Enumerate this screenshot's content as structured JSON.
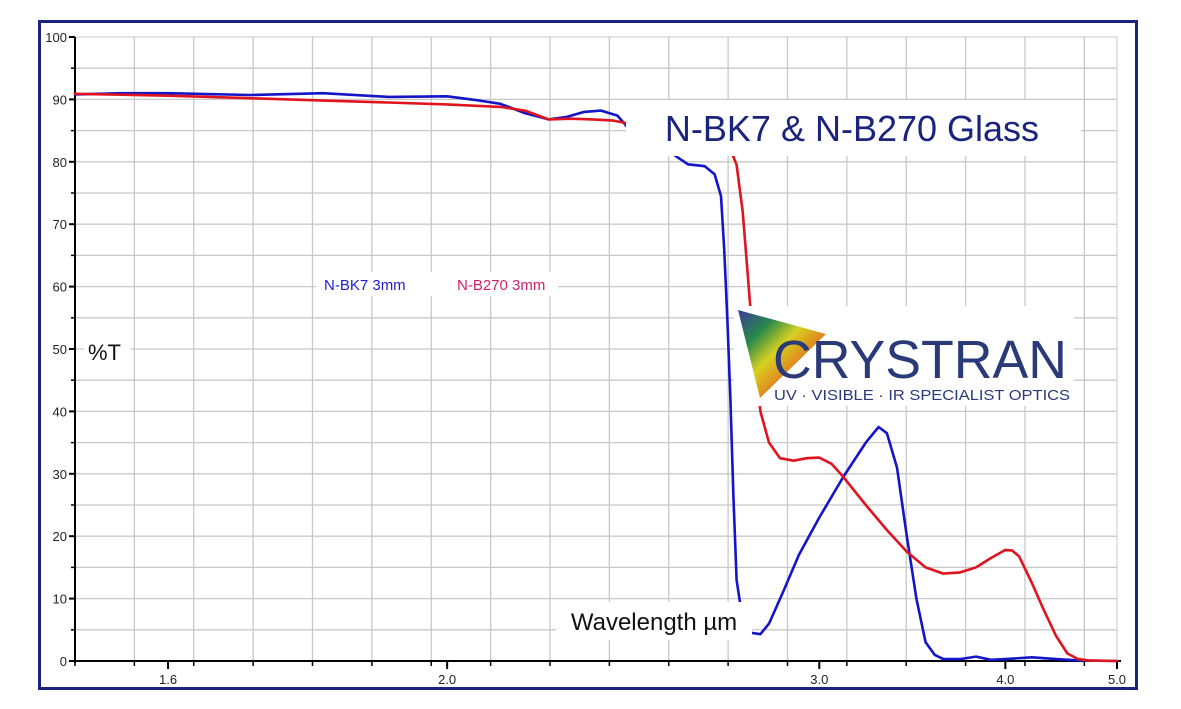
{
  "chart_data": {
    "type": "line",
    "title": "N-BK7 & N-B270 Glass",
    "xlabel": "Wavelength µm",
    "ylabel": "%T",
    "x_scale": "reciprocal (wavenumber-linear)",
    "xlim": [
      1.5,
      5.0
    ],
    "ylim": [
      0,
      100
    ],
    "grid": true,
    "x_ticks": [
      "1.6",
      "2.0",
      "3.0",
      "4.0",
      "5.0"
    ],
    "x_tick_values": [
      1.6,
      2.0,
      3.0,
      4.0,
      5.0
    ],
    "y_ticks": [
      "0",
      "10",
      "20",
      "30",
      "40",
      "50",
      "60",
      "70",
      "80",
      "90",
      "100"
    ],
    "y_tick_values": [
      0,
      10,
      20,
      30,
      40,
      50,
      60,
      70,
      80,
      90,
      100
    ],
    "series": [
      {
        "name": "N-BK7 3mm",
        "color": "#1414c8",
        "points": [
          [
            1.5,
            90.8
          ],
          [
            1.55,
            91.0
          ],
          [
            1.6,
            91.0
          ],
          [
            1.7,
            90.7
          ],
          [
            1.8,
            91.0
          ],
          [
            1.9,
            90.4
          ],
          [
            2.0,
            90.5
          ],
          [
            2.06,
            89.8
          ],
          [
            2.1,
            89.3
          ],
          [
            2.15,
            87.8
          ],
          [
            2.2,
            86.8
          ],
          [
            2.24,
            87.2
          ],
          [
            2.28,
            88.0
          ],
          [
            2.32,
            88.2
          ],
          [
            2.36,
            87.4
          ],
          [
            2.4,
            84.5
          ],
          [
            2.45,
            83.0
          ],
          [
            2.5,
            81.5
          ],
          [
            2.55,
            79.6
          ],
          [
            2.6,
            79.3
          ],
          [
            2.63,
            78.0
          ],
          [
            2.65,
            74.5
          ],
          [
            2.66,
            66.0
          ],
          [
            2.67,
            55.0
          ],
          [
            2.68,
            42.0
          ],
          [
            2.69,
            26.0
          ],
          [
            2.7,
            13.0
          ],
          [
            2.72,
            6.5
          ],
          [
            2.75,
            4.5
          ],
          [
            2.78,
            4.3
          ],
          [
            2.81,
            6.0
          ],
          [
            2.86,
            11.0
          ],
          [
            2.92,
            17.0
          ],
          [
            3.0,
            23.0
          ],
          [
            3.1,
            29.5
          ],
          [
            3.2,
            35.0
          ],
          [
            3.26,
            37.5
          ],
          [
            3.3,
            36.5
          ],
          [
            3.35,
            31.0
          ],
          [
            3.4,
            20.0
          ],
          [
            3.45,
            10.0
          ],
          [
            3.5,
            3.0
          ],
          [
            3.55,
            1.0
          ],
          [
            3.6,
            0.3
          ],
          [
            3.7,
            0.3
          ],
          [
            3.8,
            0.7
          ],
          [
            3.9,
            0.2
          ],
          [
            4.0,
            0.3
          ],
          [
            4.2,
            0.6
          ],
          [
            4.4,
            0.3
          ],
          [
            4.6,
            0.1
          ],
          [
            5.0,
            0.0
          ]
        ]
      },
      {
        "name": "N-B270 3mm",
        "color": "#e0141e",
        "points": [
          [
            1.5,
            90.9
          ],
          [
            1.6,
            90.6
          ],
          [
            1.7,
            90.2
          ],
          [
            1.8,
            89.8
          ],
          [
            1.9,
            89.5
          ],
          [
            2.0,
            89.2
          ],
          [
            2.1,
            88.8
          ],
          [
            2.15,
            88.2
          ],
          [
            2.2,
            86.8
          ],
          [
            2.25,
            86.9
          ],
          [
            2.3,
            86.8
          ],
          [
            2.35,
            86.6
          ],
          [
            2.4,
            86.0
          ],
          [
            2.45,
            85.3
          ],
          [
            2.5,
            84.6
          ],
          [
            2.55,
            84.1
          ],
          [
            2.6,
            83.6
          ],
          [
            2.65,
            83.1
          ],
          [
            2.68,
            82.0
          ],
          [
            2.7,
            79.5
          ],
          [
            2.72,
            72.0
          ],
          [
            2.74,
            60.0
          ],
          [
            2.76,
            48.0
          ],
          [
            2.78,
            40.0
          ],
          [
            2.81,
            35.0
          ],
          [
            2.85,
            32.5
          ],
          [
            2.9,
            32.1
          ],
          [
            2.95,
            32.5
          ],
          [
            3.0,
            32.6
          ],
          [
            3.05,
            31.6
          ],
          [
            3.1,
            29.5
          ],
          [
            3.2,
            25.0
          ],
          [
            3.3,
            21.0
          ],
          [
            3.4,
            17.5
          ],
          [
            3.5,
            15.0
          ],
          [
            3.6,
            14.0
          ],
          [
            3.7,
            14.2
          ],
          [
            3.8,
            15.0
          ],
          [
            3.9,
            16.5
          ],
          [
            4.0,
            17.8
          ],
          [
            4.05,
            17.7
          ],
          [
            4.1,
            16.8
          ],
          [
            4.2,
            12.5
          ],
          [
            4.3,
            8.0
          ],
          [
            4.4,
            4.0
          ],
          [
            4.5,
            1.2
          ],
          [
            4.6,
            0.3
          ],
          [
            4.7,
            0.1
          ],
          [
            5.0,
            0.0
          ]
        ]
      }
    ],
    "annotations": [
      {
        "text": "N-BK7 3mm",
        "color": "#2020d0"
      },
      {
        "text": "N-B270 3mm",
        "color": "#d0206a"
      }
    ]
  },
  "logo": {
    "name": "CRYSTRAN",
    "tagline": "UV · VISIBLE · IR SPECIALIST OPTICS",
    "name_color": "#2a3a78"
  },
  "colors": {
    "frame": "#1a237e",
    "title": "#1a237e",
    "grid": "#c8c8c8",
    "axis": "#000000"
  }
}
